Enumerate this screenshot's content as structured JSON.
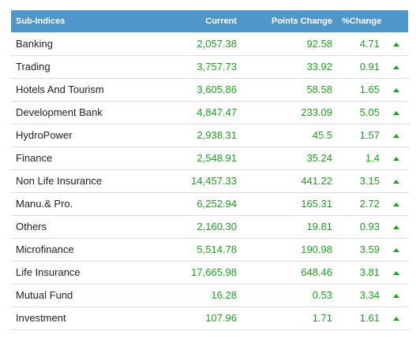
{
  "table": {
    "headers": [
      "Sub-Indices",
      "Current",
      "Points Change",
      "%Change"
    ],
    "rows": [
      {
        "name": "Banking",
        "current": "2,057.38",
        "points": "92.58",
        "pct": "4.71"
      },
      {
        "name": "Trading",
        "current": "3,757.73",
        "points": "33.92",
        "pct": "0.91"
      },
      {
        "name": "Hotels And Tourism",
        "current": "3,605.86",
        "points": "58.58",
        "pct": "1.65"
      },
      {
        "name": "Development Bank",
        "current": "4,847.47",
        "points": "233.09",
        "pct": "5.05"
      },
      {
        "name": "HydroPower",
        "current": "2,938.31",
        "points": "45.5",
        "pct": "1.57"
      },
      {
        "name": "Finance",
        "current": "2,548.91",
        "points": "35.24",
        "pct": "1.4"
      },
      {
        "name": "Non Life Insurance",
        "current": "14,457.33",
        "points": "441.22",
        "pct": "3.15"
      },
      {
        "name": "Manu.& Pro.",
        "current": "6,252.94",
        "points": "165.31",
        "pct": "2.72"
      },
      {
        "name": "Others",
        "current": "2,160.30",
        "points": "19.81",
        "pct": "0.93"
      },
      {
        "name": "Microfinance",
        "current": "5,514.78",
        "points": "190.98",
        "pct": "3.59"
      },
      {
        "name": "Life Insurance",
        "current": "17,665.98",
        "points": "648.46",
        "pct": "3.81"
      },
      {
        "name": "Mutual Fund",
        "current": "16.28",
        "points": "0.53",
        "pct": "3.34"
      },
      {
        "name": "Investment",
        "current": "107.96",
        "points": "1.71",
        "pct": "1.61"
      }
    ],
    "trend_icon": "triangle-up-icon",
    "colors": {
      "header_bg": "#4f96c9",
      "positive": "#1f9e1f"
    }
  }
}
